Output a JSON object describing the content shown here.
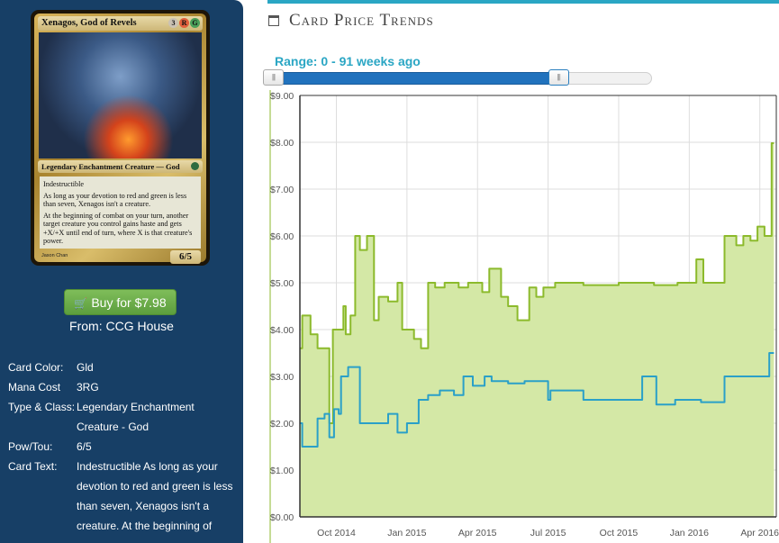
{
  "card": {
    "name": "Xenagos, God of Revels",
    "mana_pips": [
      "3",
      "R",
      "G"
    ],
    "type_line": "Legendary Enchantment Creature — God",
    "text": [
      "Indestructible",
      "As long as your devotion to red and green is less than seven, Xenagos isn't a creature.",
      "At the beginning of combat on your turn, another target creature you control gains haste and gets +X/+X until end of turn, where X is that creature's power."
    ],
    "pt": "6/5",
    "artist": "Jason Chan"
  },
  "buy": {
    "label": "Buy for $7.98",
    "icon": "cart-icon",
    "from": "From: CCG House",
    "color": "#6aad49"
  },
  "attributes": [
    {
      "label": "Card Color:",
      "value": "Gld"
    },
    {
      "label": "Mana Cost",
      "value": "3RG"
    },
    {
      "label": "Type & Class:",
      "value": "Legendary Enchantment Creature - God"
    },
    {
      "label": "Pow/Tou:",
      "value": "6/5"
    },
    {
      "label": "Card Text:",
      "value": "Indestructible As long as your devotion to red and green is less than seven, Xenagos isn't a creature. At the beginning of"
    }
  ],
  "panel": {
    "title": "Card Price Trends",
    "icon": "calendar-icon",
    "accent": "#2aa6c4"
  },
  "range": {
    "label": "Range: 0 - 91 weeks ago",
    "min": 0,
    "max": 91,
    "fill_fraction": 0.77
  },
  "chart_data": {
    "type": "area",
    "title": "",
    "xlabel": "",
    "ylabel": "",
    "x_ticks": [
      "Oct 2014",
      "Jan 2015",
      "Apr 2015",
      "Jul 2015",
      "Oct 2015",
      "Jan 2016",
      "Apr 2016"
    ],
    "y_ticks": [
      "$0.00",
      "$1.00",
      "$2.00",
      "$3.00",
      "$4.00",
      "$5.00",
      "$6.00",
      "$7.00",
      "$8.00",
      "$9.00"
    ],
    "ylim": [
      0,
      9
    ],
    "x_unit": "months since Aug 2014",
    "x_tick_values": [
      2,
      5,
      8,
      11,
      14,
      17,
      20
    ],
    "xlim": [
      0.45,
      20.7
    ],
    "grid": true,
    "legend": "none",
    "series": [
      {
        "color": "#8cba2c",
        "fill": "#d4e8a6",
        "x": [
          0.45,
          0.55,
          0.55,
          0.9,
          0.9,
          1.2,
          1.2,
          1.7,
          1.7,
          1.85,
          1.85,
          2.3,
          2.3,
          2.4,
          2.4,
          2.6,
          2.6,
          2.8,
          2.8,
          3.0,
          3.0,
          3.3,
          3.3,
          3.6,
          3.6,
          3.8,
          3.8,
          4.2,
          4.2,
          4.6,
          4.6,
          4.8,
          4.8,
          5.3,
          5.3,
          5.6,
          5.6,
          5.9,
          5.9,
          6.2,
          6.2,
          6.6,
          6.6,
          7.2,
          7.2,
          7.6,
          7.6,
          8.2,
          8.2,
          8.5,
          8.5,
          9.0,
          9.0,
          9.3,
          9.3,
          9.7,
          9.7,
          10.2,
          10.2,
          10.5,
          10.5,
          10.8,
          10.8,
          11.3,
          11.3,
          12.5,
          12.5,
          14.0,
          14.0,
          15.5,
          15.5,
          16.5,
          16.5,
          17.3,
          17.3,
          17.6,
          17.6,
          18.0,
          18.0,
          18.5,
          18.5,
          19.0,
          19.0,
          19.3,
          19.3,
          19.6,
          19.6,
          19.9,
          19.9,
          20.2,
          20.2,
          20.5,
          20.5,
          20.6
        ],
        "y": [
          3.6,
          3.6,
          4.3,
          4.3,
          3.9,
          3.9,
          3.6,
          3.6,
          2.0,
          2.0,
          4.0,
          4.0,
          4.5,
          4.5,
          3.9,
          3.9,
          4.3,
          4.3,
          6.0,
          6.0,
          5.7,
          5.7,
          6.0,
          6.0,
          4.2,
          4.2,
          4.7,
          4.7,
          4.6,
          4.6,
          5.0,
          5.0,
          4.0,
          4.0,
          3.8,
          3.8,
          3.6,
          3.6,
          5.0,
          5.0,
          4.9,
          4.9,
          5.0,
          5.0,
          4.9,
          4.9,
          5.0,
          5.0,
          4.8,
          4.8,
          5.3,
          5.3,
          4.7,
          4.7,
          4.5,
          4.5,
          4.2,
          4.2,
          4.9,
          4.9,
          4.7,
          4.7,
          4.9,
          4.9,
          5.0,
          5.0,
          4.95,
          4.95,
          5.0,
          5.0,
          4.95,
          4.95,
          5.0,
          5.0,
          5.5,
          5.5,
          5.0,
          5.0,
          5.0,
          5.0,
          6.0,
          6.0,
          5.8,
          5.8,
          6.0,
          6.0,
          5.9,
          5.9,
          6.2,
          6.2,
          6.0,
          6.0,
          7.98,
          7.98
        ]
      },
      {
        "color": "#2aa0c8",
        "x": [
          0.45,
          0.55,
          0.55,
          1.2,
          1.2,
          1.5,
          1.5,
          1.7,
          1.7,
          1.9,
          1.9,
          2.1,
          2.1,
          2.2,
          2.2,
          2.5,
          2.5,
          3.0,
          3.0,
          3.6,
          3.6,
          4.2,
          4.2,
          4.6,
          4.6,
          5.0,
          5.0,
          5.5,
          5.5,
          5.9,
          5.9,
          6.4,
          6.4,
          7.0,
          7.0,
          7.4,
          7.4,
          7.8,
          7.8,
          8.3,
          8.3,
          8.6,
          8.6,
          9.3,
          9.3,
          10.0,
          10.0,
          11.0,
          11.0,
          11.1,
          11.1,
          12.5,
          12.5,
          14.0,
          14.0,
          15.0,
          15.0,
          15.6,
          15.6,
          16.4,
          16.4,
          17.3,
          17.3,
          17.5,
          17.5,
          18.5,
          18.5,
          19.5,
          19.5,
          20.4,
          20.4,
          20.6
        ],
        "y": [
          2.0,
          2.0,
          1.5,
          1.5,
          2.1,
          2.1,
          2.2,
          2.2,
          1.7,
          1.7,
          2.3,
          2.3,
          2.2,
          2.2,
          3.0,
          3.0,
          3.2,
          3.2,
          2.0,
          2.0,
          2.0,
          2.0,
          2.2,
          2.2,
          1.8,
          1.8,
          2.0,
          2.0,
          2.5,
          2.5,
          2.6,
          2.6,
          2.7,
          2.7,
          2.6,
          2.6,
          3.0,
          3.0,
          2.8,
          2.8,
          3.0,
          3.0,
          2.9,
          2.9,
          2.85,
          2.85,
          2.9,
          2.9,
          2.5,
          2.5,
          2.7,
          2.7,
          2.5,
          2.5,
          2.5,
          2.5,
          3.0,
          3.0,
          2.4,
          2.4,
          2.5,
          2.5,
          2.5,
          2.5,
          2.45,
          2.45,
          3.0,
          3.0,
          3.0,
          3.0,
          3.5,
          3.5
        ]
      }
    ]
  }
}
